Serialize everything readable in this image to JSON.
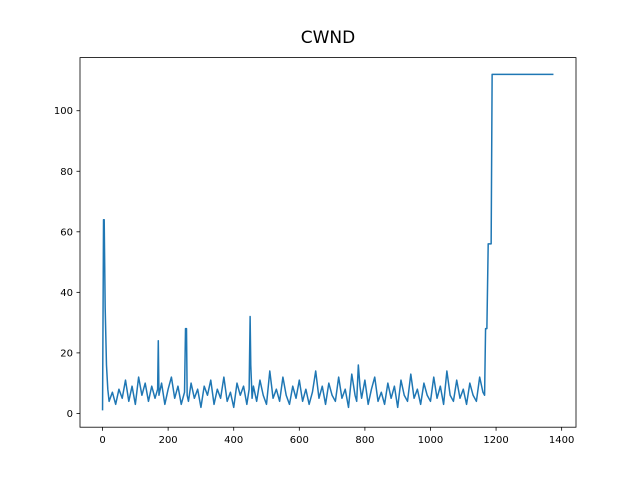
{
  "chart_data": {
    "type": "line",
    "title": "CWND",
    "x": [
      0,
      3,
      5,
      8,
      12,
      16,
      20,
      30,
      40,
      50,
      60,
      70,
      80,
      90,
      100,
      110,
      120,
      130,
      140,
      150,
      160,
      168,
      170,
      172,
      180,
      190,
      200,
      210,
      220,
      230,
      240,
      250,
      253,
      256,
      258,
      262,
      270,
      280,
      290,
      300,
      310,
      320,
      330,
      340,
      350,
      360,
      370,
      380,
      390,
      400,
      410,
      420,
      430,
      440,
      447,
      450,
      452,
      456,
      460,
      470,
      480,
      490,
      500,
      510,
      520,
      530,
      540,
      550,
      560,
      570,
      580,
      590,
      600,
      610,
      620,
      630,
      640,
      650,
      660,
      670,
      680,
      690,
      700,
      710,
      720,
      730,
      740,
      750,
      760,
      770,
      775,
      780,
      785,
      790,
      800,
      810,
      820,
      830,
      840,
      850,
      860,
      870,
      880,
      890,
      900,
      910,
      920,
      930,
      940,
      950,
      960,
      970,
      980,
      990,
      1000,
      1010,
      1020,
      1030,
      1040,
      1050,
      1060,
      1070,
      1080,
      1090,
      1100,
      1110,
      1120,
      1130,
      1140,
      1150,
      1160,
      1165,
      1168,
      1172,
      1176,
      1182,
      1185,
      1188,
      1190,
      1250,
      1300,
      1375
    ],
    "series": [
      {
        "name": "cwnd",
        "color": "#1f77b4",
        "values": [
          1,
          64,
          64,
          35,
          16,
          8,
          4,
          7,
          3,
          8,
          5,
          11,
          4,
          9,
          3,
          12,
          6,
          10,
          4,
          9,
          5,
          8,
          24,
          6,
          10,
          3,
          8,
          12,
          5,
          9,
          3,
          7,
          28,
          28,
          6,
          4,
          10,
          5,
          8,
          2,
          9,
          6,
          11,
          3,
          8,
          5,
          12,
          4,
          7,
          2,
          10,
          6,
          9,
          3,
          8,
          32,
          16,
          5,
          9,
          4,
          11,
          6,
          3,
          14,
          5,
          8,
          4,
          12,
          6,
          3,
          9,
          5,
          11,
          4,
          8,
          3,
          7,
          14,
          5,
          9,
          3,
          10,
          6,
          4,
          12,
          5,
          8,
          2,
          13,
          6,
          4,
          16,
          9,
          5,
          11,
          3,
          8,
          12,
          4,
          7,
          3,
          10,
          5,
          9,
          2,
          11,
          6,
          4,
          13,
          5,
          8,
          3,
          10,
          6,
          4,
          12,
          5,
          9,
          3,
          14,
          6,
          4,
          11,
          5,
          8,
          3,
          10,
          6,
          4,
          12,
          7,
          6,
          28,
          28,
          56,
          56,
          56,
          112,
          112,
          112,
          112,
          112
        ]
      }
    ],
    "xlim": [
      -68.75,
      1443.75
    ],
    "ylim": [
      -4.55,
      117.55
    ],
    "xticks": [
      0,
      200,
      400,
      600,
      800,
      1000,
      1200,
      1400
    ],
    "yticks": [
      0,
      20,
      40,
      60,
      80,
      100
    ]
  }
}
